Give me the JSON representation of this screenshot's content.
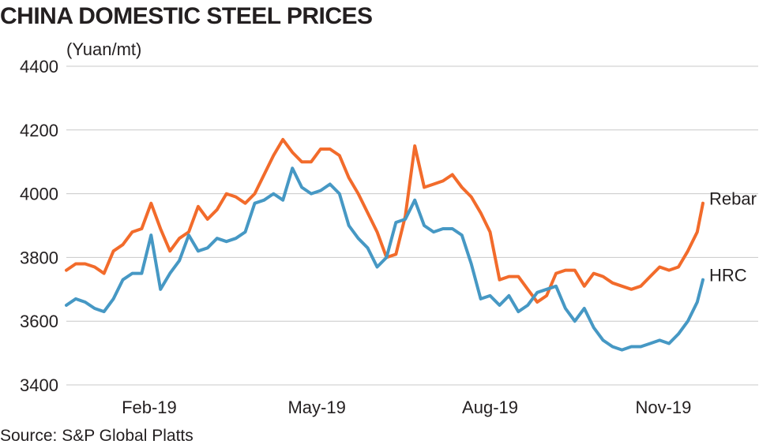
{
  "page": {
    "title": "CHINA DOMESTIC STEEL PRICES",
    "source": "Source: S&P Global Platts"
  },
  "chart_data": {
    "type": "line",
    "title": "CHINA DOMESTIC STEEL PRICES",
    "ylabel": "(Yuan/mt)",
    "xlabel": "",
    "ylim": [
      3400,
      4400
    ],
    "yticks": [
      3400,
      3600,
      3800,
      4000,
      4200,
      4400
    ],
    "xticks": [
      "Feb-19",
      "May-19",
      "Aug-19",
      "Nov-19"
    ],
    "grid": "horizontal",
    "legend": "end-of-line labels",
    "x": [
      "2019-01-02",
      "2019-01-07",
      "2019-01-12",
      "2019-01-17",
      "2019-01-22",
      "2019-01-27",
      "2019-02-01",
      "2019-02-06",
      "2019-02-11",
      "2019-02-16",
      "2019-02-21",
      "2019-02-26",
      "2019-03-03",
      "2019-03-08",
      "2019-03-13",
      "2019-03-18",
      "2019-03-23",
      "2019-03-28",
      "2019-04-02",
      "2019-04-07",
      "2019-04-12",
      "2019-04-17",
      "2019-04-22",
      "2019-04-27",
      "2019-05-02",
      "2019-05-07",
      "2019-05-12",
      "2019-05-17",
      "2019-05-22",
      "2019-05-27",
      "2019-06-01",
      "2019-06-06",
      "2019-06-11",
      "2019-06-16",
      "2019-06-21",
      "2019-06-26",
      "2019-07-01",
      "2019-07-06",
      "2019-07-11",
      "2019-07-16",
      "2019-07-21",
      "2019-07-26",
      "2019-07-31",
      "2019-08-05",
      "2019-08-10",
      "2019-08-15",
      "2019-08-20",
      "2019-08-25",
      "2019-08-30",
      "2019-09-04",
      "2019-09-09",
      "2019-09-14",
      "2019-09-19",
      "2019-09-24",
      "2019-09-29",
      "2019-10-04",
      "2019-10-09",
      "2019-10-14",
      "2019-10-19",
      "2019-10-24",
      "2019-10-29",
      "2019-11-03",
      "2019-11-08",
      "2019-11-13",
      "2019-11-18",
      "2019-11-23",
      "2019-11-28",
      "2019-12-03",
      "2019-12-06"
    ],
    "series": [
      {
        "name": "Rebar",
        "color": "#f26b2b",
        "values": [
          3760,
          3780,
          3780,
          3770,
          3750,
          3820,
          3840,
          3880,
          3890,
          3970,
          3890,
          3820,
          3860,
          3880,
          3960,
          3920,
          3950,
          4000,
          3990,
          3970,
          4000,
          4060,
          4120,
          4170,
          4130,
          4100,
          4100,
          4140,
          4140,
          4120,
          4050,
          4000,
          3940,
          3880,
          3800,
          3810,
          3930,
          4150,
          4020,
          4030,
          4040,
          4060,
          4020,
          3990,
          3940,
          3880,
          3730,
          3740,
          3740,
          3700,
          3660,
          3680,
          3750,
          3760,
          3760,
          3710,
          3750,
          3740,
          3720,
          3710,
          3700,
          3710,
          3740,
          3770,
          3760,
          3770,
          3820,
          3880,
          3970
        ]
      },
      {
        "name": "HRC",
        "color": "#4698c4",
        "values": [
          3650,
          3670,
          3660,
          3640,
          3630,
          3670,
          3730,
          3750,
          3750,
          3870,
          3700,
          3750,
          3790,
          3870,
          3820,
          3830,
          3860,
          3850,
          3860,
          3880,
          3970,
          3980,
          4000,
          3980,
          4080,
          4020,
          4000,
          4010,
          4030,
          4000,
          3900,
          3860,
          3830,
          3770,
          3800,
          3910,
          3920,
          3980,
          3900,
          3880,
          3890,
          3890,
          3870,
          3780,
          3670,
          3680,
          3650,
          3680,
          3630,
          3650,
          3690,
          3700,
          3710,
          3640,
          3600,
          3640,
          3580,
          3540,
          3520,
          3510,
          3520,
          3520,
          3530,
          3540,
          3530,
          3560,
          3600,
          3660,
          3730
        ]
      }
    ]
  }
}
